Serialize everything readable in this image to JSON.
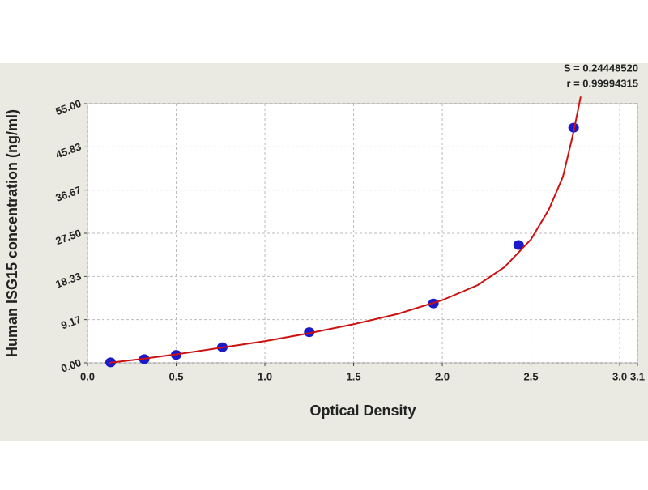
{
  "chart_data": {
    "type": "scatter",
    "x_label": "Optical Density",
    "y_label": "Human ISG15 concentration (ng/ml)",
    "annotations": [
      "S = 0.24448520",
      "r = 0.99994315"
    ],
    "xlim": [
      0,
      3.1
    ],
    "ylim": [
      0,
      55
    ],
    "xticks": [
      {
        "value": 0,
        "label": "0.0"
      },
      0.5,
      {
        "value": 1,
        "label": "1.0"
      },
      1.5,
      {
        "value": 2,
        "label": "2.0"
      },
      2.5,
      {
        "value": 3,
        "label": "3.0"
      },
      3.1
    ],
    "yticks": [
      {
        "value": 0,
        "label": "0.00"
      },
      9.17,
      18.33,
      {
        "value": 27.5,
        "label": "27.50"
      },
      36.67,
      45.83,
      {
        "value": 55,
        "label": "55.00"
      }
    ],
    "grid": true,
    "series": [
      {
        "mode": "markers",
        "color": "#1a1acc",
        "x": [
          0.13,
          0.32,
          0.5,
          0.76,
          1.25,
          1.95,
          2.43,
          2.74
        ],
        "values": [
          0.1,
          0.8,
          1.7,
          3.3,
          6.5,
          12.6,
          25.0,
          49.9
        ]
      },
      {
        "mode": "line",
        "color": "#cc1111",
        "x": [
          0.12,
          0.3,
          0.5,
          0.75,
          1.0,
          1.25,
          1.5,
          1.75,
          2.0,
          2.2,
          2.35,
          2.5,
          2.6,
          2.68,
          2.74,
          2.78
        ],
        "values": [
          0,
          0.8,
          1.8,
          3.2,
          4.6,
          6.3,
          8.2,
          10.4,
          13.3,
          16.5,
          20.3,
          26.2,
          32.5,
          39.5,
          49.0,
          56.5
        ]
      }
    ]
  }
}
